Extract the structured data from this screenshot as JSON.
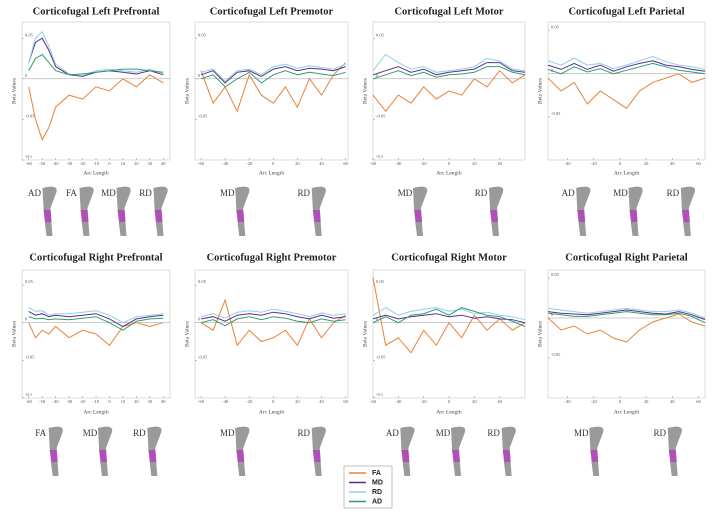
{
  "legend": {
    "names": [
      "FA",
      "MD",
      "RD",
      "AD"
    ],
    "colors": [
      "#e8823a",
      "#5b2d8c",
      "#8ecfe8",
      "#2f9e6e"
    ]
  },
  "chart_data": [
    {
      "type": "line",
      "title": "Corticofugal Left Prefrontal",
      "xlabel": "Arc Length",
      "ylabel": "Beta Values",
      "x": [
        -60,
        -55,
        -50,
        -45,
        -40,
        -30,
        -20,
        -10,
        0,
        10,
        20,
        30,
        40
      ],
      "xlim": [
        -65,
        45
      ],
      "xticks": [
        -60,
        -50,
        -40,
        -30,
        -20,
        -10,
        0,
        10,
        20,
        30,
        40
      ],
      "ylim": [
        -0.1,
        0.07
      ],
      "yticks": [
        -0.1,
        -0.05,
        0,
        0.05
      ],
      "series": [
        {
          "values": [
            -0.01,
            -0.05,
            -0.075,
            -0.06,
            -0.035,
            -0.02,
            -0.025,
            -0.01,
            -0.015,
            0.0,
            -0.01,
            0.005,
            -0.005
          ]
        },
        {
          "values": [
            0.02,
            0.045,
            0.05,
            0.035,
            0.015,
            0.005,
            0.003,
            0.008,
            0.01,
            0.008,
            0.006,
            0.01,
            0.005
          ]
        },
        {
          "values": [
            0.02,
            0.05,
            0.058,
            0.04,
            0.018,
            0.006,
            0.004,
            0.01,
            0.012,
            0.01,
            0.008,
            0.012,
            0.006
          ]
        },
        {
          "values": [
            0.01,
            0.025,
            0.03,
            0.02,
            0.01,
            0.005,
            0.006,
            0.008,
            0.01,
            0.012,
            0.012,
            0.01,
            0.008
          ]
        }
      ],
      "tract_labels": [
        "AD",
        "FA",
        "MD",
        "RD"
      ]
    },
    {
      "type": "line",
      "title": "Corticofugal Left Premotor",
      "xlabel": "Arc Length",
      "ylabel": "Beta Values",
      "x": [
        -60,
        -50,
        -40,
        -30,
        -20,
        -10,
        0,
        10,
        20,
        30,
        40,
        50,
        60
      ],
      "xlim": [
        -65,
        62
      ],
      "xticks": [
        -60,
        -40,
        -20,
        0,
        20,
        40,
        60
      ],
      "ylim": [
        -0.1,
        0.07
      ],
      "yticks": [
        -0.05,
        0,
        0.05
      ],
      "series": [
        {
          "values": [
            0.01,
            -0.03,
            -0.01,
            -0.04,
            0.005,
            -0.02,
            -0.03,
            -0.01,
            -0.035,
            0.0,
            -0.02,
            0.005,
            0.02
          ]
        },
        {
          "values": [
            0.005,
            0.01,
            -0.005,
            0.008,
            0.01,
            0.003,
            0.012,
            0.015,
            0.01,
            0.013,
            0.012,
            0.01,
            0.015
          ]
        },
        {
          "values": [
            0.008,
            0.012,
            -0.003,
            0.01,
            0.012,
            0.005,
            0.015,
            0.018,
            0.013,
            0.016,
            0.014,
            0.012,
            0.018
          ]
        },
        {
          "values": [
            0.0,
            0.005,
            -0.01,
            0.0,
            0.008,
            -0.005,
            0.005,
            0.01,
            0.005,
            0.008,
            0.006,
            0.004,
            0.008
          ]
        }
      ],
      "tract_labels": [
        "MD",
        "RD"
      ]
    },
    {
      "type": "line",
      "title": "Corticofugal Left Motor",
      "xlabel": "Arc Length",
      "ylabel": "Beta Values",
      "x": [
        -60,
        -50,
        -40,
        -30,
        -20,
        -10,
        0,
        10,
        20,
        30,
        40,
        50,
        60
      ],
      "xlim": [
        -60,
        60
      ],
      "xticks": [
        -60,
        -40,
        -20,
        0,
        20,
        40
      ],
      "ylim": [
        -0.1,
        0.07
      ],
      "yticks": [
        -0.1,
        -0.05,
        0,
        0.05
      ],
      "series": [
        {
          "values": [
            -0.02,
            -0.04,
            -0.02,
            -0.03,
            -0.01,
            -0.025,
            -0.015,
            -0.02,
            0.0,
            -0.01,
            0.01,
            -0.005,
            0.005
          ]
        },
        {
          "values": [
            0.005,
            0.01,
            0.015,
            0.008,
            0.012,
            0.005,
            0.008,
            0.01,
            0.012,
            0.02,
            0.02,
            0.01,
            0.008
          ]
        },
        {
          "values": [
            0.01,
            0.03,
            0.02,
            0.012,
            0.015,
            0.008,
            0.01,
            0.012,
            0.015,
            0.025,
            0.022,
            0.012,
            0.01
          ]
        },
        {
          "values": [
            0.0,
            0.005,
            0.01,
            0.004,
            0.008,
            0.002,
            0.005,
            0.006,
            0.008,
            0.015,
            0.015,
            0.008,
            0.005
          ]
        }
      ],
      "tract_labels": [
        "MD",
        "RD"
      ]
    },
    {
      "type": "line",
      "title": "Corticofugal Left Parietal",
      "xlabel": "Arc Length",
      "ylabel": "Beta Values",
      "x": [
        -55,
        -45,
        -35,
        -25,
        -15,
        -5,
        5,
        15,
        25,
        35,
        45,
        55,
        65
      ],
      "xlim": [
        -55,
        65
      ],
      "xticks": [
        -40,
        -20,
        0,
        20,
        40,
        60
      ],
      "ylim": [
        -0.1,
        0.06
      ],
      "yticks": [
        -0.05,
        0,
        0.05
      ],
      "series": [
        {
          "values": [
            -0.005,
            -0.02,
            -0.01,
            -0.035,
            -0.02,
            -0.03,
            -0.04,
            -0.02,
            -0.01,
            -0.005,
            0.0,
            -0.01,
            -0.005
          ]
        },
        {
          "values": [
            0.01,
            0.005,
            0.012,
            0.005,
            0.01,
            0.003,
            0.008,
            0.012,
            0.015,
            0.01,
            0.008,
            0.005,
            0.003
          ]
        },
        {
          "values": [
            0.015,
            0.01,
            0.018,
            0.01,
            0.012,
            0.006,
            0.01,
            0.015,
            0.02,
            0.014,
            0.01,
            0.008,
            0.005
          ]
        },
        {
          "values": [
            0.005,
            0.0,
            0.008,
            0.002,
            0.006,
            0.0,
            0.004,
            0.008,
            0.012,
            0.008,
            0.004,
            0.002,
            0.0
          ]
        }
      ],
      "tract_labels": [
        "AD",
        "MD",
        "RD"
      ]
    },
    {
      "type": "line",
      "title": "Corticofugal Right Prefrontal",
      "xlabel": "Arc Length",
      "ylabel": "Beta Values",
      "x": [
        -60,
        -55,
        -50,
        -45,
        -40,
        -30,
        -20,
        -10,
        0,
        10,
        20,
        30,
        40
      ],
      "xlim": [
        -65,
        45
      ],
      "xticks": [
        -60,
        -50,
        -40,
        -30,
        -20,
        -10,
        0,
        10,
        20,
        30,
        40
      ],
      "ylim": [
        -0.1,
        0.07
      ],
      "yticks": [
        -0.1,
        -0.05,
        0,
        0.05
      ],
      "series": [
        {
          "values": [
            0.0,
            -0.02,
            -0.01,
            -0.015,
            -0.005,
            -0.02,
            -0.01,
            -0.015,
            -0.03,
            -0.005,
            0.0,
            -0.005,
            0.0
          ]
        },
        {
          "values": [
            0.015,
            0.01,
            0.012,
            0.008,
            0.01,
            0.008,
            0.01,
            0.012,
            0.005,
            -0.005,
            0.005,
            0.008,
            0.01
          ]
        },
        {
          "values": [
            0.02,
            0.015,
            0.016,
            0.01,
            0.012,
            0.012,
            0.014,
            0.016,
            0.01,
            0.0,
            0.008,
            0.01,
            0.012
          ]
        },
        {
          "values": [
            0.008,
            0.005,
            0.006,
            0.004,
            0.005,
            0.004,
            0.006,
            0.008,
            0.0,
            -0.01,
            0.002,
            0.005,
            0.006
          ]
        }
      ],
      "tract_labels": [
        "FA",
        "MD",
        "RD"
      ]
    },
    {
      "type": "line",
      "title": "Corticofugal Right Premotor",
      "xlabel": "Arc Length",
      "ylabel": "Beta Values",
      "x": [
        -60,
        -50,
        -40,
        -30,
        -20,
        -10,
        0,
        10,
        20,
        30,
        40,
        50,
        60
      ],
      "xlim": [
        -65,
        62
      ],
      "xticks": [
        -60,
        -40,
        -20,
        0,
        20,
        40,
        60
      ],
      "ylim": [
        -0.1,
        0.07
      ],
      "yticks": [
        -0.05,
        0,
        0.05
      ],
      "series": [
        {
          "values": [
            0.0,
            -0.01,
            0.03,
            -0.03,
            -0.01,
            -0.025,
            -0.02,
            -0.01,
            -0.03,
            0.005,
            -0.02,
            0.0,
            0.01
          ]
        },
        {
          "values": [
            0.005,
            0.008,
            0.002,
            0.01,
            0.012,
            0.01,
            0.014,
            0.012,
            0.008,
            0.005,
            0.01,
            0.006,
            0.008
          ]
        },
        {
          "values": [
            0.008,
            0.012,
            0.006,
            0.014,
            0.016,
            0.014,
            0.018,
            0.015,
            0.012,
            0.008,
            0.013,
            0.01,
            0.012
          ]
        },
        {
          "values": [
            0.0,
            0.004,
            -0.004,
            0.005,
            0.008,
            0.004,
            0.008,
            0.006,
            0.002,
            0.0,
            0.005,
            0.002,
            0.004
          ]
        }
      ],
      "tract_labels": [
        "MD",
        "RD"
      ]
    },
    {
      "type": "line",
      "title": "Corticofugal Right Motor",
      "xlabel": "Arc Length",
      "ylabel": "Beta Values",
      "x": [
        -60,
        -50,
        -40,
        -30,
        -20,
        -10,
        0,
        10,
        20,
        30,
        40,
        50,
        60
      ],
      "xlim": [
        -60,
        60
      ],
      "xticks": [
        -60,
        -40,
        -20,
        0,
        20,
        40
      ],
      "ylim": [
        -0.1,
        0.07
      ],
      "yticks": [
        -0.1,
        -0.05,
        0,
        0.05
      ],
      "series": [
        {
          "values": [
            0.06,
            -0.03,
            -0.02,
            -0.04,
            -0.01,
            -0.03,
            0.0,
            -0.02,
            0.01,
            -0.01,
            0.005,
            -0.01,
            0.0
          ]
        },
        {
          "values": [
            0.005,
            0.01,
            0.005,
            0.008,
            0.01,
            0.012,
            0.008,
            0.01,
            0.006,
            0.008,
            0.005,
            0.004,
            0.0
          ]
        },
        {
          "values": [
            0.01,
            0.02,
            0.01,
            0.015,
            0.018,
            0.02,
            0.015,
            0.018,
            0.012,
            0.014,
            0.01,
            0.008,
            0.004
          ]
        },
        {
          "values": [
            0.0,
            0.008,
            0.0,
            0.01,
            0.012,
            0.018,
            0.01,
            0.02,
            0.015,
            0.01,
            0.008,
            0.002,
            -0.005
          ]
        }
      ],
      "tract_labels": [
        "AD",
        "MD",
        "RD"
      ]
    },
    {
      "type": "line",
      "title": "Corticofugal Right Parietal",
      "xlabel": "Arc Length",
      "ylabel": "Beta Values",
      "x": [
        -55,
        -45,
        -35,
        -25,
        -15,
        -5,
        5,
        15,
        25,
        35,
        45,
        55,
        65
      ],
      "xlim": [
        -55,
        65
      ],
      "xticks": [
        -40,
        -20,
        0,
        20,
        40,
        60
      ],
      "ylim": [
        -0.1,
        0.06
      ],
      "yticks": [
        -0.05,
        0,
        0.05
      ],
      "series": [
        {
          "values": [
            0.0,
            -0.015,
            -0.01,
            -0.02,
            -0.015,
            -0.025,
            -0.03,
            -0.015,
            -0.005,
            0.0,
            0.005,
            -0.005,
            -0.01
          ]
        },
        {
          "values": [
            0.008,
            0.006,
            0.005,
            0.004,
            0.006,
            0.008,
            0.01,
            0.008,
            0.006,
            0.005,
            0.008,
            0.004,
            -0.002
          ]
        },
        {
          "values": [
            0.012,
            0.01,
            0.008,
            0.006,
            0.008,
            0.01,
            0.012,
            0.01,
            0.008,
            0.008,
            0.01,
            0.006,
            0.0
          ]
        },
        {
          "values": [
            0.006,
            0.004,
            0.002,
            0.002,
            0.004,
            0.006,
            0.008,
            0.006,
            0.004,
            0.004,
            0.006,
            0.002,
            -0.006
          ]
        }
      ],
      "tract_labels": [
        "MD",
        "RD"
      ]
    }
  ]
}
